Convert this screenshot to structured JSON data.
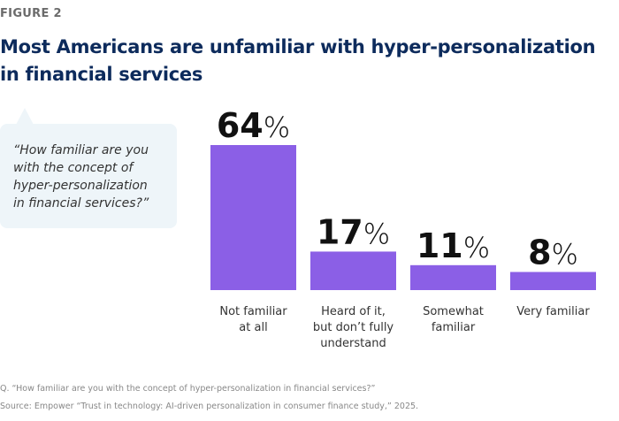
{
  "figure_label": "FIGURE 2",
  "title": "Most Americans are unfamiliar with hyper-personalization in financial services",
  "bubble_text": "“How familiar are you\nwith the concept of\nhyper-personalization\nin financial services?”",
  "footnote_question": "Q. “How familiar are you with the concept of hyper-personalization in financial services?”",
  "footnote_source": "Source: Empower “Trust in technology: AI-driven personalization in consumer finance study,” 2025.",
  "chart_data": {
    "type": "bar",
    "categories": [
      "Not familiar\nat all",
      "Heard of it,\nbut don’t fully\nunderstand",
      "Somewhat\nfamiliar",
      "Very familiar"
    ],
    "values": [
      64,
      17,
      11,
      8
    ],
    "data_labels": [
      "64",
      "17",
      "11",
      "8"
    ],
    "unit": "%",
    "bar_color": "#8b5fe6",
    "ylim": [
      0,
      64
    ]
  }
}
